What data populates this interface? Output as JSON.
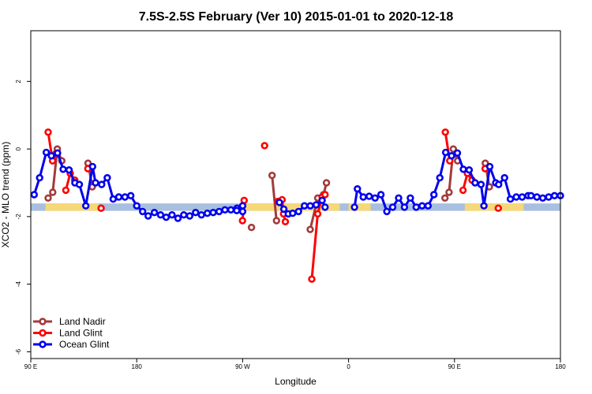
{
  "chart_data": {
    "type": "line",
    "title": "7.5S-2.5S February (Ver 10)   2015-01-01 to 2020-12-18",
    "xlabel": "Longitude",
    "ylabel": "XCO2 - MLO trend (ppm)",
    "xlim": [
      90,
      450
    ],
    "ylim": [
      -6.2,
      3.5
    ],
    "xticks": [
      {
        "value": 90,
        "label": "90 E"
      },
      {
        "value": 162,
        "label": "180"
      },
      {
        "value": 234,
        "label": "90 W"
      },
      {
        "value": 306,
        "label": "0"
      },
      {
        "value": 378,
        "label": "90 E"
      },
      {
        "value": 450,
        "label": "180"
      }
    ],
    "yticks": [
      {
        "value": 2,
        "label": "2"
      },
      {
        "value": 0,
        "label": "0"
      },
      {
        "value": -2,
        "label": "-2"
      },
      {
        "value": -4,
        "label": "-4"
      },
      {
        "value": -6,
        "label": "-6"
      }
    ],
    "band": {
      "y_center": -1.72,
      "half_height": 0.11,
      "base_color": "#a8bfe0",
      "land_color": "#f6d878",
      "land_ranges": [
        [
          100,
          136
        ],
        [
          236,
          300
        ],
        [
          306,
          321
        ],
        [
          385,
          425
        ]
      ]
    },
    "legend": {
      "position": "bottom-left",
      "entries": [
        {
          "name": "Land Nadir",
          "color": "#a23b3b"
        },
        {
          "name": "Land Glint",
          "color": "#ff0000"
        },
        {
          "name": "Ocean Glint",
          "color": "#0000ee"
        }
      ]
    },
    "series": [
      {
        "name": "Land Nadir",
        "color": "#a23b3b",
        "segments": [
          {
            "x": [
              101.8,
              104.9,
              108.0,
              111.1
            ],
            "y": [
              -1.45,
              -1.28,
              0.0,
              -0.35
            ]
          },
          {
            "x": [
              128.9,
              131.8
            ],
            "y": [
              -0.42,
              -1.12
            ]
          },
          {
            "x": [
              240.0
            ],
            "y": [
              -2.32
            ]
          },
          {
            "x": [
              254.0,
              257.0
            ],
            "y": [
              -0.78,
              -2.12
            ]
          },
          {
            "x": [
              279.9,
              285.0,
              289.0,
              291.0
            ],
            "y": [
              -2.38,
              -1.45,
              -1.35,
              -1.0
            ]
          },
          {
            "x": [
              371.5,
              374.3,
              377.2,
              380.1
            ],
            "y": [
              -1.45,
              -1.28,
              0.0,
              -0.35
            ]
          },
          {
            "x": [
              398.9,
              401.7
            ],
            "y": [
              -0.42,
              -1.12
            ]
          }
        ]
      },
      {
        "name": "Land Glint",
        "color": "#ff0000",
        "segments": [
          {
            "x": [
              101.8,
              104.8,
              106.8
            ],
            "y": [
              0.5,
              -0.35,
              -0.15
            ]
          },
          {
            "x": [
              113.8,
              116.8,
              119.9
            ],
            "y": [
              -1.22,
              -0.72,
              -0.92
            ]
          },
          {
            "x": [
              128.8
            ],
            "y": [
              -0.58
            ]
          },
          {
            "x": [
              137.8
            ],
            "y": [
              -1.75
            ]
          },
          {
            "x": [
              233.9,
              235.0
            ],
            "y": [
              -2.12,
              -1.52
            ]
          },
          {
            "x": [
              248.9
            ],
            "y": [
              0.1
            ]
          },
          {
            "x": [
              258.0,
              260.8,
              261.8,
              263.0
            ],
            "y": [
              -1.55,
              -1.5,
              -1.92,
              -2.15
            ]
          },
          {
            "x": [
              281.0,
              285.0,
              288.0,
              290.0
            ],
            "y": [
              -3.85,
              -1.92,
              -1.42,
              -1.35
            ]
          },
          {
            "x": [
              371.8,
              374.8
            ],
            "y": [
              0.5,
              -0.35
            ]
          },
          {
            "x": [
              383.8,
              386.8,
              389.9
            ],
            "y": [
              -1.22,
              -0.72,
              -0.92
            ]
          },
          {
            "x": [
              398.8
            ],
            "y": [
              -0.58
            ]
          },
          {
            "x": [
              407.8
            ],
            "y": [
              -1.75
            ]
          }
        ]
      },
      {
        "name": "Ocean Glint",
        "color": "#0000ee",
        "segments": [
          {
            "x": [
              92.3,
              96.0,
              100.5,
              104.0,
              108.2,
              112.0,
              116.0,
              120.0,
              123.0,
              127.4,
              132.0,
              134.0,
              138.2,
              142.0,
              146.0,
              149.8,
              154.0,
              158.0,
              162.0,
              166.0,
              169.8,
              174.0,
              178.2,
              182.0,
              186.0,
              190.0,
              194.0,
              198.0,
              202.0,
              206.0,
              210.0,
              214.0,
              218.0,
              222.0,
              226.0,
              230.2,
              234.0
            ],
            "y": [
              -1.35,
              -0.85,
              -0.1,
              -0.2,
              -0.12,
              -0.6,
              -0.62,
              -1.0,
              -1.05,
              -1.68,
              -0.52,
              -1.0,
              -1.05,
              -0.85,
              -1.48,
              -1.42,
              -1.42,
              -1.38,
              -1.68,
              -1.85,
              -1.98,
              -1.88,
              -1.95,
              -2.02,
              -1.95,
              -2.05,
              -1.95,
              -1.98,
              -1.88,
              -1.95,
              -1.9,
              -1.88,
              -1.85,
              -1.8,
              -1.8,
              -1.75,
              -1.68
            ]
          },
          {
            "x": [
              230.0,
              234.0
            ],
            "y": [
              -1.82,
              -1.85
            ]
          },
          {
            "x": [
              259.0,
              262.0,
              265.0,
              268.0,
              272.0,
              276.0,
              280.0,
              284.0,
              288.0,
              290.0
            ],
            "y": [
              -1.58,
              -1.78,
              -1.92,
              -1.9,
              -1.85,
              -1.68,
              -1.68,
              -1.65,
              -1.52,
              -1.72
            ]
          },
          {
            "x": [
              310.0,
              312.0,
              316.0,
              320.0,
              324.0,
              328.0,
              332.0,
              336.0,
              340.0,
              344.0,
              348.0,
              352.0,
              356.0,
              360.0,
              364.0,
              368.0,
              372.0,
              376.0,
              380.0,
              384.0,
              388.0,
              392.0,
              396.0,
              398.0,
              402.0,
              406.0,
              408.0,
              412.0,
              416.0,
              420.0,
              424.0,
              428.0,
              430.0,
              434.0,
              438.0,
              442.0,
              446.0,
              450.0
            ],
            "y": [
              -1.72,
              -1.18,
              -1.42,
              -1.4,
              -1.45,
              -1.35,
              -1.85,
              -1.72,
              -1.45,
              -1.72,
              -1.45,
              -1.72,
              -1.68,
              -1.68,
              -1.35,
              -0.85,
              -0.1,
              -0.2,
              -0.12,
              -0.6,
              -0.62,
              -1.0,
              -1.05,
              -1.68,
              -0.52,
              -1.0,
              -1.05,
              -0.85,
              -1.48,
              -1.42,
              -1.42,
              -1.38,
              -1.38,
              -1.42,
              -1.45,
              -1.42,
              -1.38,
              -1.38
            ]
          }
        ]
      }
    ]
  }
}
